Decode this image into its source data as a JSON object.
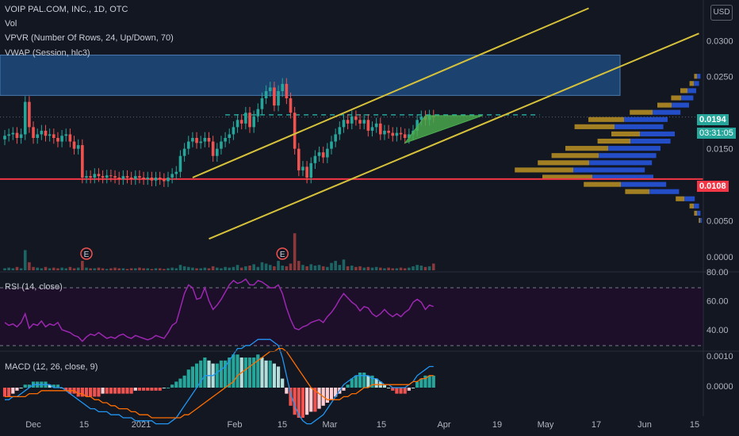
{
  "legend": {
    "title": "VOIP PAL.COM, INC., 1D, OTC",
    "vol": "Vol",
    "vpvr": "VPVR (Number Of Rows, 24, Up/Down, 70)",
    "vwap": "VWAP (Session, hlc3)",
    "rsi": "RSI (14, close)",
    "macd": "MACD (12, 26, close, 9)"
  },
  "currency_button": "USD",
  "price_tag": {
    "value": "0.0194",
    "countdown": "03:31:05",
    "color": "#26a69a"
  },
  "level_tag": {
    "value": "0.0108",
    "color": "#f23645"
  },
  "earnings_marker": "E",
  "colors": {
    "background": "#131722",
    "up": "#26a69a",
    "down": "#ef5350",
    "trendline": "#d6c13a",
    "zone": "#1e4a7d",
    "level": "#f23645",
    "rsi_band": "#1d0f2a",
    "rsi_line": "#9c27b0",
    "macd_line": "#2196f3",
    "signal_line": "#ff6d00"
  },
  "chart_data": [
    {
      "type": "candlestick",
      "title": "VOIP PAL.COM, INC., 1D, OTC",
      "x_tick_labels": [
        "Dec",
        "15",
        "2021",
        "Feb",
        "15",
        "Mar",
        "15",
        "Apr",
        "19",
        "May",
        "17",
        "Jun",
        "15"
      ],
      "y_tick_labels": [
        "0.0300",
        "0.0250",
        "0.0150",
        "0.0050",
        "0.0000"
      ],
      "ylim": [
        0,
        0.033
      ],
      "closes": [
        0.0168,
        0.017,
        0.0172,
        0.0165,
        0.017,
        0.0215,
        0.018,
        0.0165,
        0.017,
        0.0175,
        0.0168,
        0.017,
        0.0165,
        0.016,
        0.0168,
        0.017,
        0.016,
        0.015,
        0.0155,
        0.011,
        0.0112,
        0.011,
        0.0115,
        0.0112,
        0.011,
        0.0113,
        0.0112,
        0.011,
        0.0108,
        0.0112,
        0.011,
        0.0108,
        0.0112,
        0.011,
        0.0108,
        0.011,
        0.0106,
        0.011,
        0.0108,
        0.0105,
        0.011,
        0.0115,
        0.0118,
        0.014,
        0.015,
        0.016,
        0.0165,
        0.0158,
        0.016,
        0.0165,
        0.016,
        0.014,
        0.015,
        0.016,
        0.0165,
        0.017,
        0.018,
        0.019,
        0.0185,
        0.02,
        0.018,
        0.0195,
        0.0205,
        0.022,
        0.023,
        0.0235,
        0.021,
        0.023,
        0.024,
        0.022,
        0.02,
        0.015,
        0.012,
        0.0125,
        0.011,
        0.013,
        0.014,
        0.0145,
        0.0138,
        0.015,
        0.016,
        0.017,
        0.018,
        0.019,
        0.0185,
        0.0195,
        0.019,
        0.0185,
        0.019,
        0.0175,
        0.018,
        0.0185,
        0.017,
        0.0175,
        0.0172,
        0.0168,
        0.0172,
        0.017,
        0.0165,
        0.017,
        0.0175,
        0.019,
        0.0195,
        0.019,
        0.0196,
        0.0194
      ],
      "volumes": [
        3,
        4,
        3,
        5,
        3,
        30,
        12,
        5,
        4,
        3,
        5,
        3,
        4,
        3,
        4,
        3,
        5,
        3,
        4,
        14,
        4,
        3,
        3,
        4,
        3,
        2,
        3,
        4,
        3,
        3,
        2,
        3,
        3,
        4,
        3,
        3,
        2,
        3,
        3,
        2,
        3,
        4,
        3,
        8,
        6,
        5,
        4,
        3,
        3,
        4,
        3,
        6,
        4,
        3,
        5,
        4,
        5,
        8,
        4,
        6,
        7,
        9,
        5,
        12,
        10,
        8,
        6,
        14,
        7,
        6,
        10,
        55,
        14,
        8,
        6,
        9,
        7,
        8,
        6,
        5,
        11,
        14,
        8,
        16,
        6,
        7,
        5,
        6,
        4,
        5,
        4,
        5,
        4,
        3,
        4,
        3,
        3,
        4,
        3,
        4,
        6,
        8,
        7,
        5,
        6,
        10
      ],
      "levels": [
        {
          "name": "support",
          "value": 0.0108
        },
        {
          "name": "resistance",
          "value": 0.0197
        }
      ],
      "zone": [
        0.0224,
        0.028
      ],
      "vpvr_rows": [
        0.002,
        0.004,
        0.006,
        0.012,
        0.034,
        0.052,
        0.07,
        0.082,
        0.072,
        0.066,
        0.06,
        0.046,
        0.04,
        0.056,
        0.05,
        0.032,
        0.02,
        0.014,
        0.01,
        0.006,
        0.004
      ],
      "current_price": 0.0194
    },
    {
      "type": "line",
      "title": "RSI (14, close)",
      "ylim": [
        20,
        80
      ],
      "y_tick_labels": [
        "80.00",
        "60.00",
        "40.00"
      ],
      "values": [
        46,
        44,
        45,
        43,
        46,
        52,
        42,
        45,
        44,
        47,
        43,
        45,
        44,
        46,
        41,
        40,
        39,
        37,
        36,
        33,
        36,
        38,
        37,
        39,
        37,
        35,
        36,
        35,
        37,
        38,
        36,
        35,
        37,
        36,
        35,
        34,
        35,
        37,
        36,
        35,
        39,
        44,
        46,
        56,
        66,
        72,
        70,
        62,
        63,
        70,
        61,
        55,
        58,
        62,
        67,
        72,
        75,
        73,
        74,
        76,
        72,
        72,
        75,
        74,
        72,
        70,
        70,
        72,
        66,
        56,
        48,
        42,
        41,
        43,
        44,
        46,
        47,
        48,
        46,
        50,
        53,
        57,
        62,
        66,
        63,
        60,
        58,
        54,
        57,
        56,
        52,
        50,
        52,
        55,
        52,
        50,
        52,
        50,
        53,
        55,
        60,
        62,
        60,
        55,
        58,
        57
      ]
    },
    {
      "type": "bar",
      "title": "MACD (12, 26, close, 9)",
      "ylim": [
        -0.0015,
        0.0015
      ],
      "y_tick_labels": [
        "0.0010",
        "0.0000"
      ],
      "histogram": [
        -0.0003,
        -0.0003,
        -0.0002,
        -0.0001,
        0.0,
        0.0001,
        0.0001,
        0.0002,
        0.0002,
        0.0002,
        0.0002,
        0.0001,
        0.0001,
        0.0001,
        0.0,
        -0.0001,
        -0.0002,
        -0.0002,
        -0.0003,
        -0.0003,
        -0.0003,
        -0.0003,
        -0.0003,
        -0.0003,
        -0.0002,
        -0.0002,
        -0.0002,
        -0.0002,
        -0.0002,
        -0.0002,
        -0.0002,
        -0.0002,
        -0.0001,
        -0.0001,
        -0.0001,
        -0.0001,
        -0.0001,
        -0.0001,
        -0.0001,
        0.0,
        0.0,
        0.0001,
        0.0002,
        0.0003,
        0.0004,
        0.0006,
        0.0007,
        0.0008,
        0.0009,
        0.001,
        0.0009,
        0.0008,
        0.0008,
        0.0009,
        0.0009,
        0.001,
        0.0011,
        0.0011,
        0.001,
        0.001,
        0.001,
        0.001,
        0.0011,
        0.001,
        0.0009,
        0.0009,
        0.0008,
        0.0007,
        0.0003,
        -0.0002,
        -0.0006,
        -0.0009,
        -0.001,
        -0.001,
        -0.0009,
        -0.0008,
        -0.0008,
        -0.0007,
        -0.0006,
        -0.0005,
        -0.0004,
        -0.0003,
        -0.0002,
        -0.0001,
        0.0001,
        0.0003,
        0.0004,
        0.0005,
        0.0005,
        0.0004,
        0.0004,
        0.0003,
        0.0002,
        0.0001,
        0.0,
        -0.0001,
        -0.0002,
        -0.0002,
        -0.0002,
        -0.0001,
        0.0,
        0.0002,
        0.0003,
        0.0004,
        0.0004,
        0.0004
      ],
      "macd": [
        -0.0004,
        -0.0004,
        -0.0003,
        -0.0003,
        -0.0002,
        -0.0001,
        0.0,
        0.0001,
        0.0001,
        0.0001,
        0.0001,
        0.0001,
        0.0,
        0.0,
        0.0,
        -0.0001,
        -0.0002,
        -0.0003,
        -0.0004,
        -0.0005,
        -0.0006,
        -0.0007,
        -0.0007,
        -0.0008,
        -0.0008,
        -0.0008,
        -0.0009,
        -0.0009,
        -0.0009,
        -0.001,
        -0.001,
        -0.001,
        -0.0011,
        -0.0011,
        -0.0011,
        -0.0011,
        -0.0011,
        -0.0012,
        -0.0012,
        -0.0012,
        -0.0012,
        -0.0011,
        -0.001,
        -0.0008,
        -0.0006,
        -0.0004,
        -0.0002,
        0.0,
        0.0002,
        0.0004,
        0.0004,
        0.0004,
        0.0005,
        0.0006,
        0.0007,
        0.0009,
        0.0011,
        0.0013,
        0.0013,
        0.0014,
        0.0014,
        0.0015,
        0.0016,
        0.0016,
        0.0016,
        0.0016,
        0.0015,
        0.0014,
        0.001,
        0.0004,
        -0.0002,
        -0.0006,
        -0.0009,
        -0.0011,
        -0.0012,
        -0.0012,
        -0.0011,
        -0.001,
        -0.0009,
        -0.0007,
        -0.0005,
        -0.0003,
        -0.0001,
        0.0001,
        0.0002,
        0.0003,
        0.0004,
        0.0004,
        0.0004,
        0.0004,
        0.0003,
        0.0003,
        0.0002,
        0.0001,
        0.0001,
        0.0,
        0.0,
        0.0,
        0.0,
        0.0001,
        0.0002,
        0.0004,
        0.0005,
        0.0006,
        0.0007,
        0.0007
      ],
      "signal": [
        -0.0003,
        -0.0003,
        -0.0003,
        -0.0003,
        -0.0003,
        -0.0003,
        -0.0002,
        -0.0002,
        -0.0002,
        -0.0001,
        -0.0001,
        -0.0001,
        -0.0001,
        -0.0001,
        -0.0001,
        -0.0001,
        -0.0001,
        -0.0001,
        -0.0002,
        -0.0002,
        -0.0003,
        -0.0003,
        -0.0004,
        -0.0004,
        -0.0005,
        -0.0005,
        -0.0006,
        -0.0006,
        -0.0007,
        -0.0007,
        -0.0007,
        -0.0008,
        -0.0008,
        -0.0009,
        -0.0009,
        -0.0009,
        -0.001,
        -0.001,
        -0.001,
        -0.001,
        -0.001,
        -0.001,
        -0.001,
        -0.001,
        -0.0009,
        -0.0009,
        -0.0008,
        -0.0007,
        -0.0006,
        -0.0005,
        -0.0004,
        -0.0003,
        -0.0002,
        -0.0001,
        0.0,
        0.0001,
        0.0002,
        0.0004,
        0.0005,
        0.0006,
        0.0007,
        0.0008,
        0.0009,
        0.001,
        0.0011,
        0.0012,
        0.0012,
        0.0013,
        0.0013,
        0.0012,
        0.001,
        0.0008,
        0.0006,
        0.0004,
        0.0002,
        0.0,
        -0.0001,
        -0.0002,
        -0.0003,
        -0.0004,
        -0.0004,
        -0.0004,
        -0.0004,
        -0.0003,
        -0.0003,
        -0.0002,
        -0.0002,
        -0.0001,
        0.0,
        0.0,
        0.0001,
        0.0001,
        0.0001,
        0.0001,
        0.0001,
        0.0001,
        0.0001,
        0.0001,
        0.0001,
        0.0001,
        0.0002,
        0.0002,
        0.0003,
        0.0003,
        0.0004,
        0.0004
      ]
    }
  ]
}
